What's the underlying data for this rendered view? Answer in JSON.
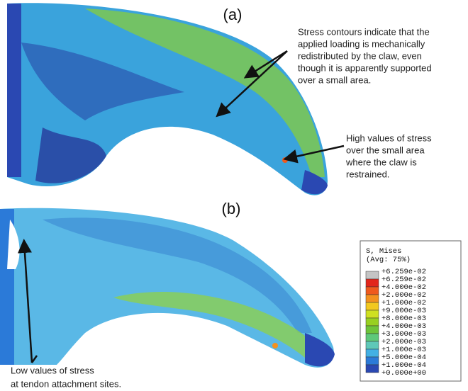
{
  "panels": [
    {
      "label": "(a)"
    },
    {
      "label": "(b)"
    }
  ],
  "annotations": [
    {
      "lines": [
        "Stress contours indicate that the",
        "applied loading is mechanically",
        "redistributed by the claw, even",
        "though it is apparently supported",
        "over a small area."
      ]
    },
    {
      "lines": [
        "High values of stress",
        "over the small area",
        "where the claw is",
        "restrained."
      ]
    },
    {
      "lines": [
        "Low values of stress",
        "at tendon attachment sites."
      ]
    }
  ],
  "legend": {
    "title": [
      "S, Mises",
      "(Avg: 75%)"
    ],
    "labels": [
      "+6.259e-02",
      "+6.259e-02",
      "+4.000e-02",
      "+2.000e-02",
      "+1.000e-02",
      "+9.000e-03",
      "+8.000e-03",
      "+4.000e-03",
      "+3.000e-03",
      "+2.000e-03",
      "+1.000e-03",
      "+5.000e-04",
      "+1.000e-04",
      "+0.000e+00"
    ],
    "colors": [
      "#c4c4c4",
      "#e2261c",
      "#ef5a1e",
      "#f3911f",
      "#f2c81f",
      "#cfe021",
      "#98d021",
      "#6ec43a",
      "#5ec87a",
      "#5fc8b8",
      "#42b0e4",
      "#2b7ad8",
      "#2a48b2"
    ]
  }
}
